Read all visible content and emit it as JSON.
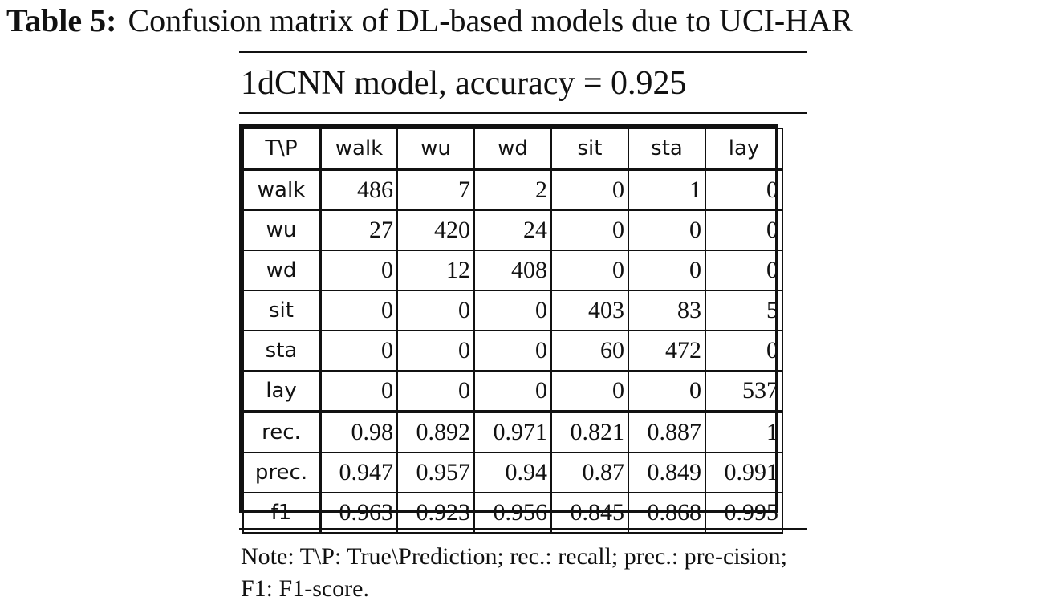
{
  "caption": {
    "label": "Table 5:",
    "text": "Confusion matrix of DL-based models due to UCI-HAR"
  },
  "subtitle": "1dCNN model, accuracy = 0.925",
  "matrix": {
    "corner": "T\\P",
    "columns": [
      "walk",
      "wu",
      "wd",
      "sit",
      "sta",
      "lay"
    ],
    "rows": [
      {
        "label": "walk",
        "values": [
          "486",
          "7",
          "2",
          "0",
          "1",
          "0"
        ]
      },
      {
        "label": "wu",
        "values": [
          "27",
          "420",
          "24",
          "0",
          "0",
          "0"
        ]
      },
      {
        "label": "wd",
        "values": [
          "0",
          "12",
          "408",
          "0",
          "0",
          "0"
        ]
      },
      {
        "label": "sit",
        "values": [
          "0",
          "0",
          "0",
          "403",
          "83",
          "5"
        ]
      },
      {
        "label": "sta",
        "values": [
          "0",
          "0",
          "0",
          "60",
          "472",
          "0"
        ]
      },
      {
        "label": "lay",
        "values": [
          "0",
          "0",
          "0",
          "0",
          "0",
          "537"
        ]
      }
    ],
    "metrics": [
      {
        "label": "rec.",
        "values": [
          "0.98",
          "0.892",
          "0.971",
          "0.821",
          "0.887",
          "1"
        ]
      },
      {
        "label": "prec.",
        "values": [
          "0.947",
          "0.957",
          "0.94",
          "0.87",
          "0.849",
          "0.991"
        ]
      },
      {
        "label": "f1",
        "values": [
          "0.963",
          "0.923",
          "0.956",
          "0.845",
          "0.868",
          "0.995"
        ]
      }
    ]
  },
  "note": "Note: T\\P: True\\Prediction; rec.: recall; prec.: pre-cision; F1: F1-score."
}
